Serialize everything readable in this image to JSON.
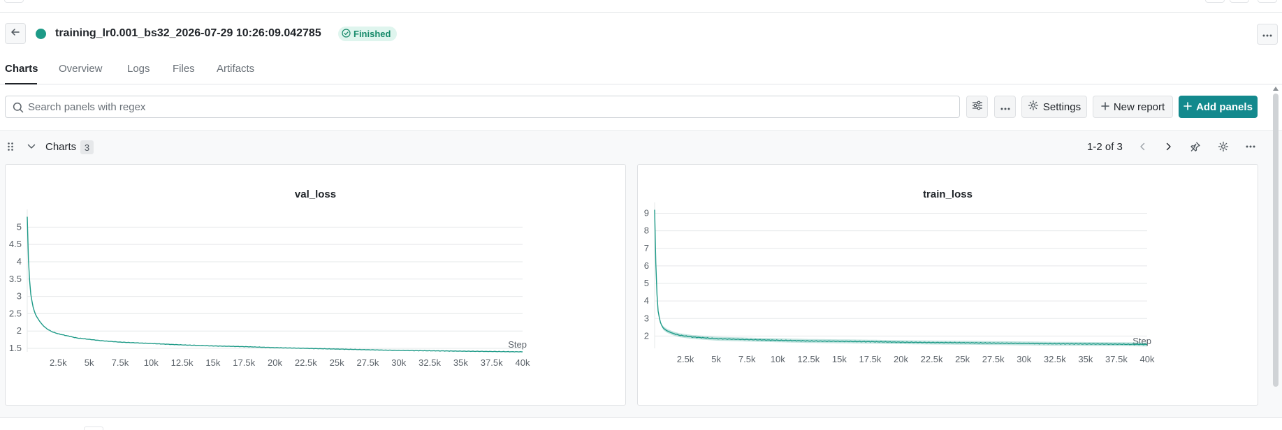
{
  "run": {
    "title": "training_lr0.001_bs32_2026-07-29 10:26:09.042785",
    "status": "Finished",
    "status_color": "#178a6a",
    "dot_color": "#1d9a87"
  },
  "tabs": [
    {
      "label": "Charts",
      "active": true
    },
    {
      "label": "Overview",
      "active": false
    },
    {
      "label": "Logs",
      "active": false
    },
    {
      "label": "Files",
      "active": false
    },
    {
      "label": "Artifacts",
      "active": false
    }
  ],
  "toolbar": {
    "search_placeholder": "Search panels with regex",
    "settings_label": "Settings",
    "new_report_label": "New report",
    "add_panels_label": "Add panels",
    "accent": "#13898d"
  },
  "section": {
    "title": "Charts",
    "count": "3",
    "pager": "1-2 of 3"
  },
  "icons": {
    "back": "arrow-left-icon",
    "more": "ellipsis-icon",
    "search": "search-icon",
    "filter": "sliders-icon",
    "settings": "gear-icon",
    "new_report": "plus-icon",
    "add_panels": "plus-icon",
    "drag": "drag-handle-icon",
    "collapse": "chevron-down-icon",
    "prev": "chevron-left-icon",
    "next": "chevron-right-icon",
    "pin": "pin-icon"
  },
  "chart_data": [
    {
      "type": "line",
      "title": "val_loss",
      "xlabel": "Step",
      "ylabel": "",
      "xlim": [
        0,
        40000
      ],
      "ylim": [
        1.4,
        5.35
      ],
      "x_ticks": [
        "2.5k",
        "5k",
        "7.5k",
        "10k",
        "12.5k",
        "15k",
        "17.5k",
        "20k",
        "22.5k",
        "25k",
        "27.5k",
        "30k",
        "32.5k",
        "35k",
        "37.5k",
        "40k"
      ],
      "y_ticks": [
        "1.5",
        "2",
        "2.5",
        "3",
        "3.5",
        "4",
        "4.5",
        "5"
      ],
      "grid": true,
      "color": "#1d9a87",
      "series": [
        {
          "x": [
            0,
            100,
            200,
            300,
            500,
            700,
            1000,
            1300,
            1600,
            2000,
            2500,
            3000,
            3500,
            4000,
            5000,
            6000,
            7500,
            10000,
            12500,
            15000,
            17500,
            20000,
            22500,
            25000,
            27500,
            30000,
            32500,
            35000,
            37500,
            40000
          ],
          "y": [
            5.3,
            4.0,
            3.4,
            3.0,
            2.65,
            2.45,
            2.28,
            2.15,
            2.06,
            1.98,
            1.92,
            1.88,
            1.84,
            1.8,
            1.76,
            1.72,
            1.68,
            1.64,
            1.6,
            1.57,
            1.55,
            1.52,
            1.5,
            1.48,
            1.46,
            1.44,
            1.43,
            1.42,
            1.41,
            1.4
          ]
        }
      ]
    },
    {
      "type": "line",
      "title": "train_loss",
      "xlabel": "Step",
      "ylabel": "",
      "xlim": [
        0,
        40000
      ],
      "ylim": [
        1.3,
        9.3
      ],
      "x_ticks": [
        "2.5k",
        "5k",
        "7.5k",
        "10k",
        "12.5k",
        "15k",
        "17.5k",
        "20k",
        "22.5k",
        "25k",
        "27.5k",
        "30k",
        "32.5k",
        "35k",
        "37.5k",
        "40k"
      ],
      "y_ticks": [
        "2",
        "3",
        "4",
        "5",
        "6",
        "7",
        "8",
        "9"
      ],
      "grid": true,
      "color": "#1d9a87",
      "band": "min-max shaded",
      "series": [
        {
          "x": [
            0,
            100,
            200,
            300,
            500,
            700,
            1000,
            1500,
            2000,
            2500,
            3000,
            4000,
            5000,
            7500,
            10000,
            12500,
            15000,
            17500,
            20000,
            22500,
            25000,
            27500,
            30000,
            32500,
            35000,
            37500,
            40000
          ],
          "y": [
            9.2,
            6.0,
            4.2,
            3.3,
            2.7,
            2.45,
            2.3,
            2.15,
            2.05,
            2.0,
            1.95,
            1.9,
            1.85,
            1.8,
            1.76,
            1.72,
            1.7,
            1.68,
            1.65,
            1.63,
            1.62,
            1.6,
            1.58,
            1.56,
            1.55,
            1.54,
            1.52
          ]
        }
      ]
    }
  ]
}
